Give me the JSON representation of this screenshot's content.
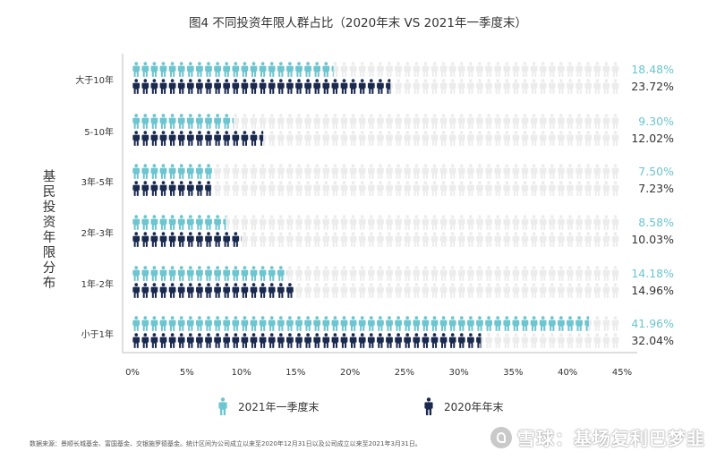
{
  "chart_data": {
    "type": "bar",
    "title": "图4   不同投资年限人群占比（2020年末 VS 2021年一季度末）",
    "ylabel": "基民投资年限分布",
    "categories": [
      "大于10年",
      "5-10年",
      "3年-5年",
      "2年-3年",
      "1年-2年",
      "小于1年"
    ],
    "series": [
      {
        "name": "2021年一季度末",
        "values": [
          18.48,
          9.3,
          7.5,
          8.58,
          14.18,
          41.96
        ],
        "labels": [
          "18.48%",
          "9.30%",
          "7.50%",
          "8.58%",
          "14.18%",
          "41.96%"
        ]
      },
      {
        "name": "2020年年末",
        "values": [
          23.72,
          12.02,
          7.23,
          10.03,
          14.96,
          32.04
        ],
        "labels": [
          "23.72%",
          "12.02%",
          "7.23%",
          "10.03%",
          "14.96%",
          "32.04%"
        ]
      }
    ],
    "xlim": [
      0,
      45
    ],
    "xticks": [
      "0%",
      "5%",
      "10%",
      "15%",
      "20%",
      "25%",
      "30%",
      "35%",
      "40%",
      "45%"
    ],
    "colors": {
      "2021年一季度末": "#6cc5cf",
      "2020年年末": "#1a2a4f",
      "background_icon": "#ececec",
      "label_2021": "#6cc5cf",
      "label_2020": "#333333",
      "axis": "#bdbdbd"
    },
    "legend_position": "bottom",
    "grid": false,
    "mark": "person-icon"
  },
  "footnote": "数据来源：景顺长城基金、富国基金、交银施罗德基金。统计区间为公司成立以来至2020年12月31日以及公司成立以来至2021年3月31日。",
  "watermark": "雪球：基场复利巴梦韭"
}
